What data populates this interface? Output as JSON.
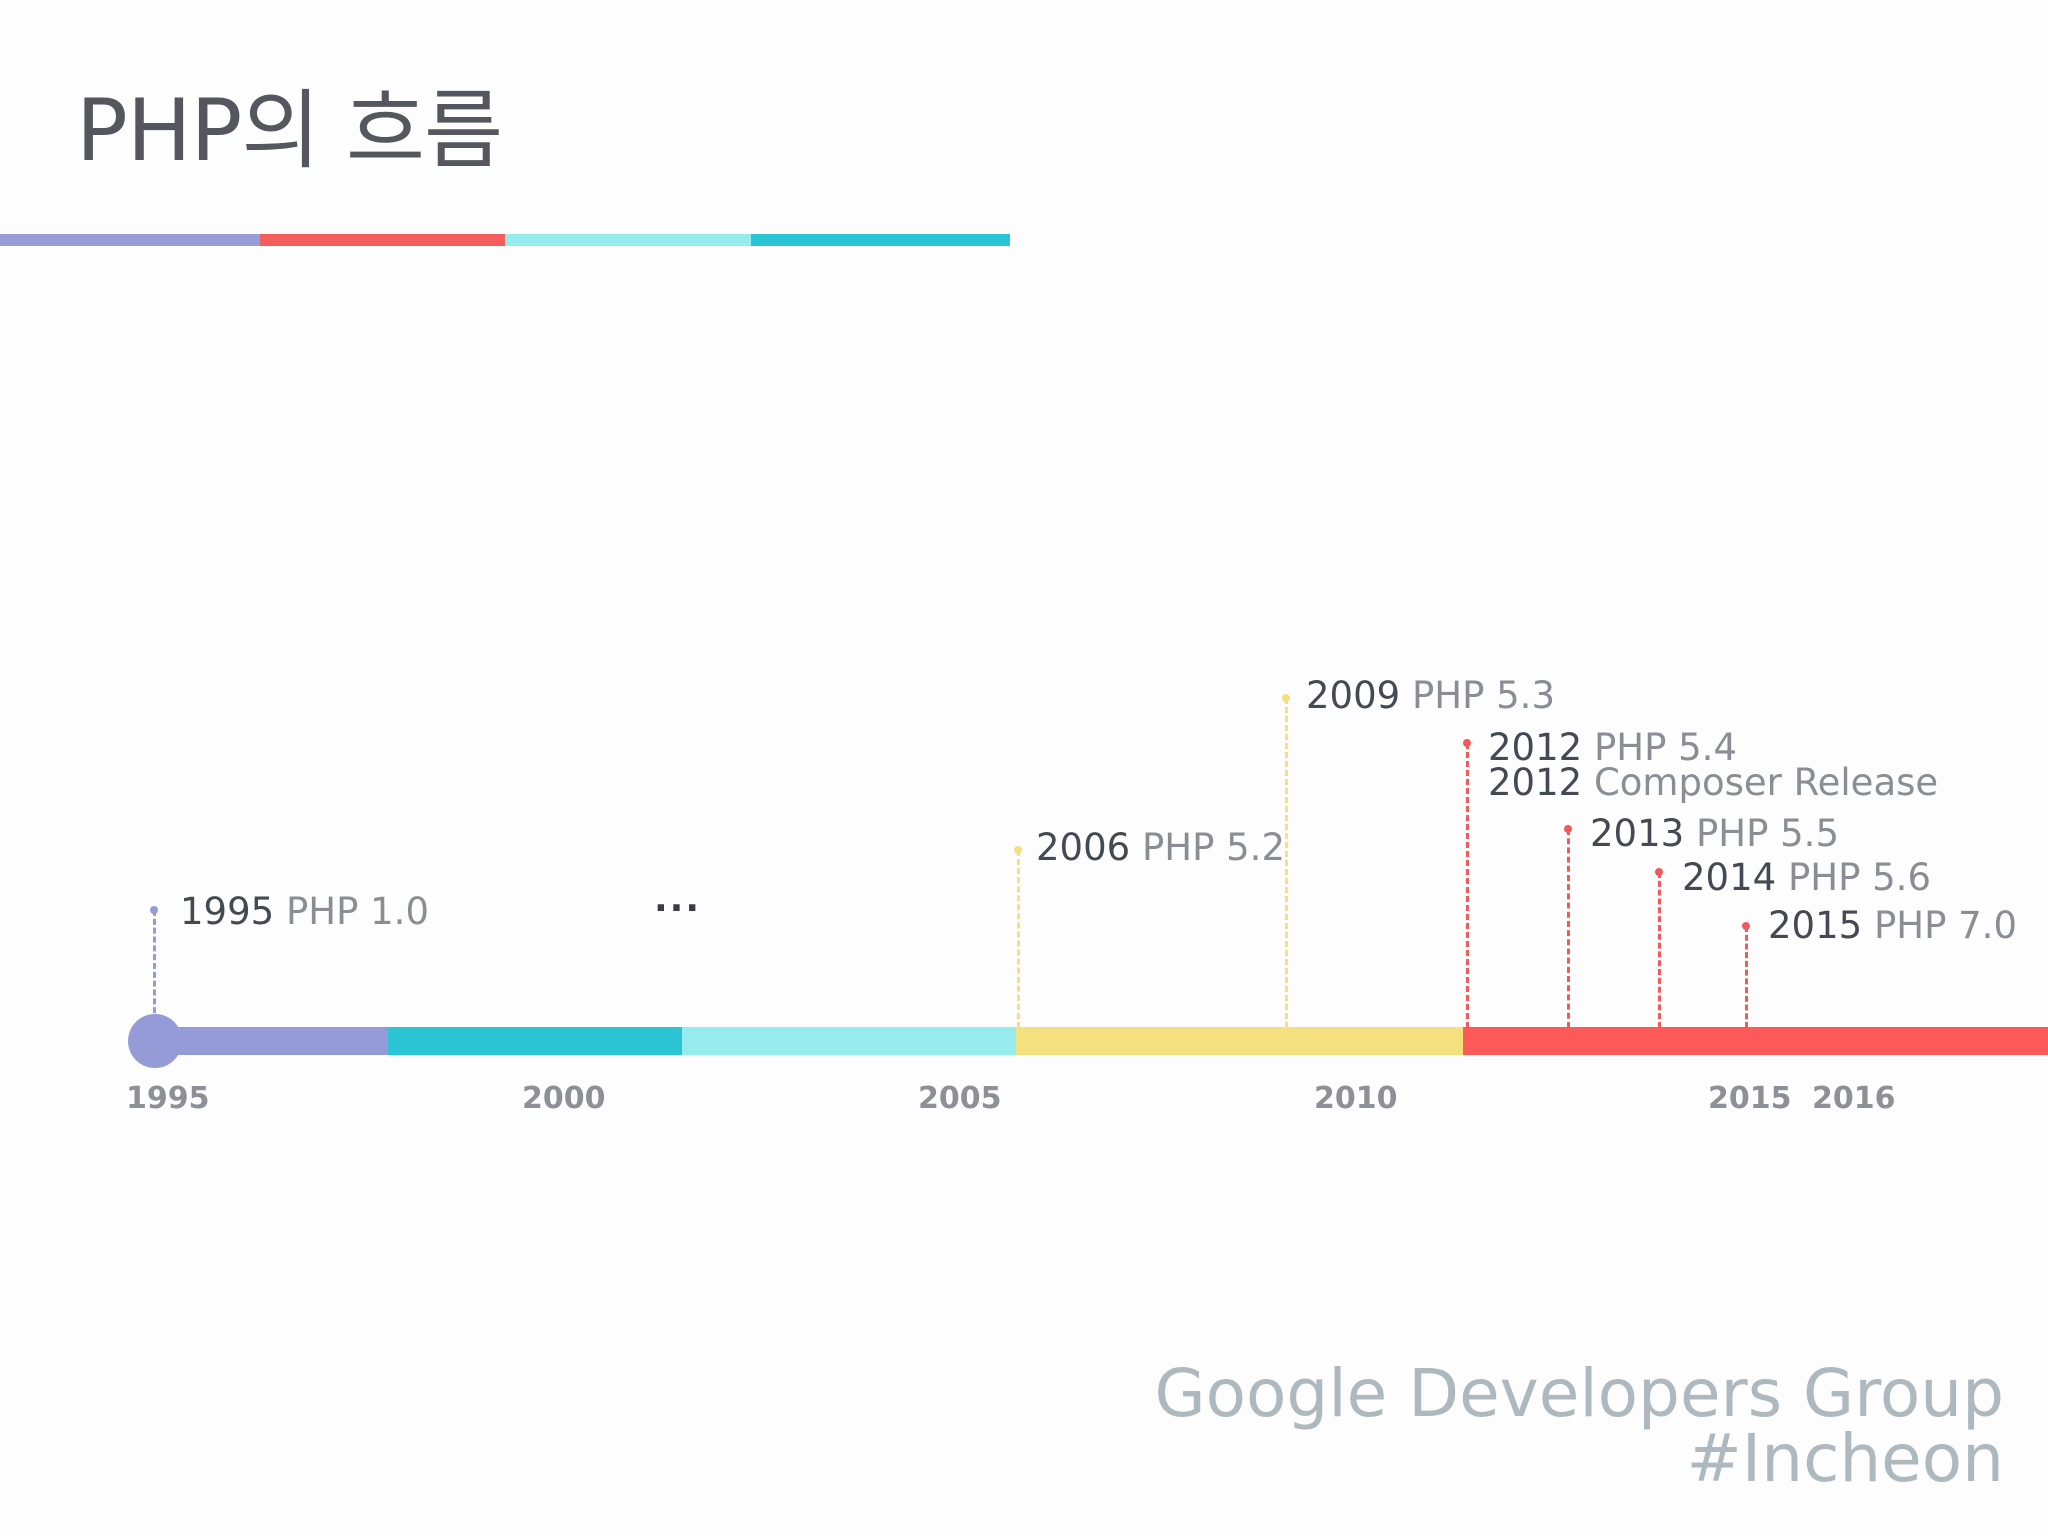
{
  "slide": {
    "title": "PHP의 흐름",
    "title_bar_colors": [
      "#979dd4",
      "#f55d5d",
      "#96eced",
      "#2ac4d5"
    ],
    "ellipsis": "...",
    "footer": {
      "line1": "Google Developers Group",
      "line2": "#Incheon"
    }
  },
  "timeline": {
    "axis_colors": {
      "early": "#949bd6",
      "php4": "#2ac4d5",
      "php4_late": "#96eced",
      "php5": "#f5e07f",
      "modern": "#fe5a5a"
    },
    "ticks": [
      "1995",
      "2000",
      "2005",
      "2010",
      "2015",
      "2016"
    ],
    "events": [
      {
        "year": "1995",
        "label": "PHP 1.0",
        "color": "#949bd6"
      },
      {
        "year": "2006",
        "label": "PHP 5.2",
        "color": "#f5e07f"
      },
      {
        "year": "2009",
        "label": "PHP 5.3",
        "color": "#f5e07f"
      },
      {
        "year": "2012",
        "label": "PHP 5.4",
        "color": "#ef5a5a"
      },
      {
        "year": "2012",
        "label": "Composer Release",
        "color": "#ef5a5a"
      },
      {
        "year": "2013",
        "label": "PHP 5.5",
        "color": "#ef5a5a"
      },
      {
        "year": "2014",
        "label": "PHP 5.6",
        "color": "#ef5a5a"
      },
      {
        "year": "2015",
        "label": "PHP 7.0",
        "color": "#ef5a5a"
      }
    ]
  }
}
